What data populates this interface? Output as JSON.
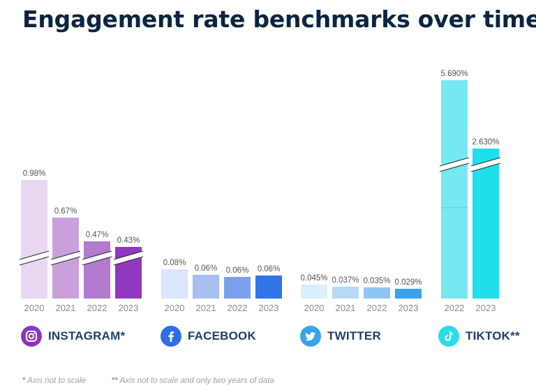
{
  "title": "Engagement rate benchmarks over time",
  "chart_data": {
    "type": "bar",
    "title": "Engagement rate benchmarks over time",
    "axis_broken": true,
    "groups": [
      {
        "platform": "INSTAGRAM*",
        "icon": "instagram-icon",
        "icon_color": "#8e35c0",
        "years": [
          "2020",
          "2021",
          "2022",
          "2023"
        ],
        "values": [
          0.98,
          0.67,
          0.47,
          0.43
        ],
        "labels": [
          "0.98%",
          "0.67%",
          "0.47%",
          "0.43%"
        ],
        "colors": [
          "#e9d6f0",
          "#c9a0dc",
          "#b37ad0",
          "#9038c0"
        ]
      },
      {
        "platform": "FACEBOOK",
        "icon": "facebook-icon",
        "icon_color": "#2c6ee6",
        "years": [
          "2020",
          "2021",
          "2022",
          "2023"
        ],
        "values": [
          0.08,
          0.06,
          0.06,
          0.06
        ],
        "labels": [
          "0.08%",
          "0.06%",
          "0.06%",
          "0.06%"
        ],
        "colors": [
          "#dbe5fb",
          "#a7bff1",
          "#7ba0ec",
          "#2f75e6"
        ]
      },
      {
        "platform": "TWITTER",
        "icon": "twitter-icon",
        "icon_color": "#36a3ea",
        "years": [
          "2020",
          "2021",
          "2022",
          "2023"
        ],
        "values": [
          0.045,
          0.037,
          0.035,
          0.029
        ],
        "labels": [
          "0.045%",
          "0.037%",
          "0.035%",
          "0.029%"
        ],
        "colors": [
          "#dbeefb",
          "#b5daf6",
          "#8ec6f1",
          "#3aa2ea"
        ]
      },
      {
        "platform": "TIKTOK**",
        "icon": "tiktok-icon",
        "icon_color": "#28dde8",
        "years": [
          "2022",
          "2023"
        ],
        "values": [
          5.69,
          2.63
        ],
        "labels": [
          "5.690%",
          "2.630%"
        ],
        "colors": [
          "#76e8f2",
          "#1fdfea"
        ]
      }
    ]
  },
  "footnotes": {
    "note1_mark": "*",
    "note1": "Axis not to scale",
    "note2_mark": "**",
    "note2": "Axis not to scale and only two years of data"
  }
}
